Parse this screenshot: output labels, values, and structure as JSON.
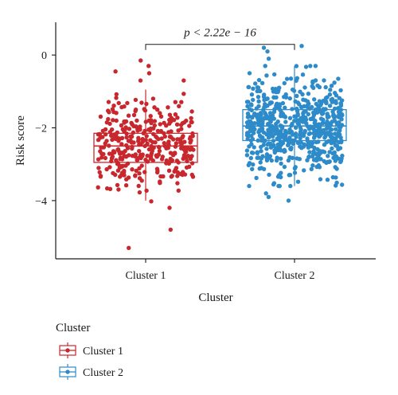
{
  "chart_data": {
    "type": "box-jitter",
    "xlabel": "Cluster",
    "ylabel": "Risk score",
    "ylim": [
      -5.6,
      0.9
    ],
    "yticks": [
      0,
      -2,
      -4
    ],
    "ytick_labels": [
      "0",
      "−2",
      "−4"
    ],
    "categories": [
      "Cluster 1",
      "Cluster 2"
    ],
    "series": [
      {
        "name": "Cluster 1",
        "color": "#c8282d",
        "q1": -2.95,
        "median": -2.5,
        "q3": -2.15,
        "whisker_low": -4.0,
        "whisker_high": -0.95,
        "outliers": [
          -0.3,
          -0.5,
          -0.45,
          -0.15,
          -0.7,
          -4.2,
          -4.8,
          -5.3
        ],
        "n_points": 360,
        "y_range": [
          -4.1,
          -0.7
        ]
      },
      {
        "name": "Cluster 2",
        "color": "#2e8bc9",
        "q1": -2.35,
        "median": -1.95,
        "q3": -1.5,
        "whisker_low": -3.6,
        "whisker_high": -0.3,
        "outliers": [
          0.25,
          0.2,
          0.1,
          -0.1,
          -3.8,
          -4.0,
          -3.9
        ],
        "n_points": 650,
        "y_range": [
          -3.6,
          -0.3
        ]
      }
    ],
    "annotation": {
      "text": "p < 2.22e − 16",
      "y": 0.6
    },
    "legend": {
      "title": "Cluster",
      "position": "bottom-left",
      "entries": [
        "Cluster 1",
        "Cluster 2"
      ]
    },
    "grid": false
  }
}
